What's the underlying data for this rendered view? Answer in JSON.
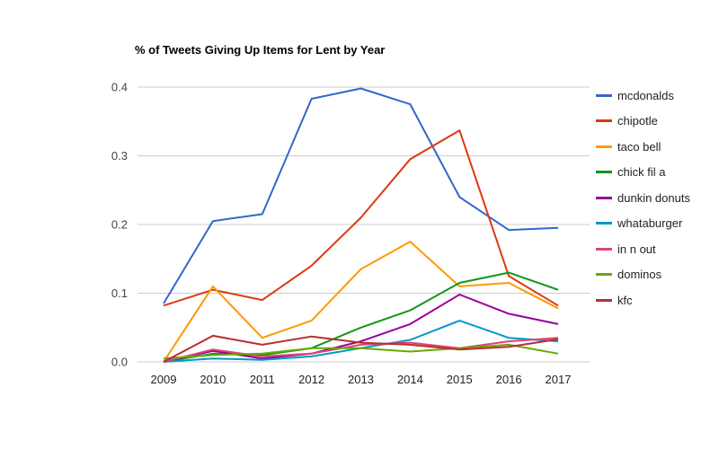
{
  "chart_data": {
    "type": "line",
    "title": "% of Tweets Giving Up Items for Lent by Year",
    "categories": [
      "2009",
      "2010",
      "2011",
      "2012",
      "2013",
      "2014",
      "2015",
      "2016",
      "2017"
    ],
    "series": [
      {
        "name": "mcdonalds",
        "color": "#3366cc",
        "values": [
          0.085,
          0.205,
          0.215,
          0.383,
          0.398,
          0.375,
          0.24,
          0.192,
          0.195
        ]
      },
      {
        "name": "chipotle",
        "color": "#dc3912",
        "values": [
          0.082,
          0.105,
          0.09,
          0.14,
          0.21,
          0.295,
          0.337,
          0.125,
          0.082
        ]
      },
      {
        "name": "taco bell",
        "color": "#ff9900",
        "values": [
          0.0,
          0.11,
          0.035,
          0.06,
          0.135,
          0.175,
          0.11,
          0.115,
          0.078
        ]
      },
      {
        "name": "chick fil a",
        "color": "#109618",
        "values": [
          0.0,
          0.012,
          0.01,
          0.02,
          0.05,
          0.075,
          0.115,
          0.13,
          0.105
        ]
      },
      {
        "name": "dunkin donuts",
        "color": "#990099",
        "values": [
          0.0,
          0.016,
          0.005,
          0.012,
          0.03,
          0.055,
          0.098,
          0.07,
          0.055
        ]
      },
      {
        "name": "whataburger",
        "color": "#0099c6",
        "values": [
          0.0,
          0.005,
          0.003,
          0.008,
          0.02,
          0.032,
          0.06,
          0.035,
          0.03
        ]
      },
      {
        "name": "in n out",
        "color": "#dd4477",
        "values": [
          0.0,
          0.018,
          0.008,
          0.012,
          0.025,
          0.028,
          0.02,
          0.03,
          0.035
        ]
      },
      {
        "name": "dominos",
        "color": "#66aa00",
        "values": [
          0.005,
          0.01,
          0.012,
          0.02,
          0.02,
          0.015,
          0.02,
          0.025,
          0.012
        ]
      },
      {
        "name": "kfc",
        "color": "#b82e2e",
        "values": [
          0.0,
          0.038,
          0.025,
          0.037,
          0.028,
          0.025,
          0.018,
          0.022,
          0.033
        ]
      }
    ],
    "xlabel": "",
    "ylabel": "",
    "ylim": [
      0,
      0.4
    ],
    "yticks": [
      0,
      0.1,
      0.2,
      0.3,
      0.4
    ],
    "ytick_labels": [
      "0.0",
      "0.1",
      "0.2",
      "0.3",
      "0.4"
    ],
    "grid": true,
    "legend_position": "right",
    "colors": {
      "background": "#ffffff",
      "gridline": "#cccccc",
      "ytick_text": "#444444",
      "xtick_text": "#222222",
      "legend_text": "#222222",
      "title_text": "#000000"
    }
  }
}
